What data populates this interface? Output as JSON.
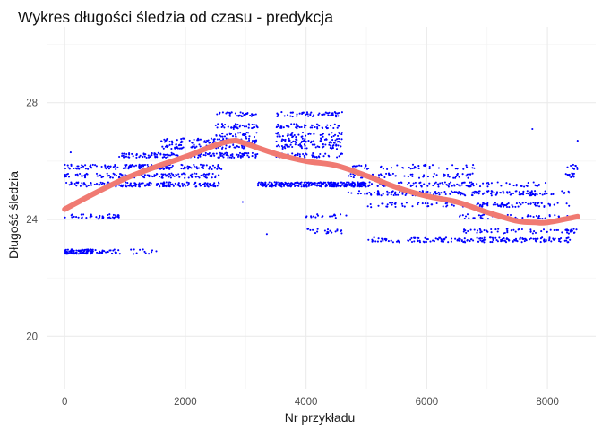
{
  "chart_data": {
    "type": "scatter",
    "title": "Wykres długości śledzia od czasu - predykcja",
    "xlabel": "Nr przykładu",
    "ylabel": "Długość śledzia",
    "xlim": [
      -300,
      8800
    ],
    "ylim": [
      18.2,
      30.6
    ],
    "x_ticks": [
      0,
      2000,
      4000,
      6000,
      8000
    ],
    "y_ticks": [
      20,
      24,
      28
    ],
    "x_tick_labels": [
      "0",
      "2000",
      "4000",
      "6000",
      "8000"
    ],
    "y_tick_labels": [
      "20",
      "24",
      "28"
    ],
    "grid": true,
    "colors": {
      "points": "#0000ff",
      "trend": "#f07a72",
      "grid": "#ebebeb",
      "background": "#ffffff"
    },
    "series": [
      {
        "kind": "points",
        "x_min": 0,
        "x_max": 8500,
        "note_levels": [
          22.9,
          23.3,
          23.6,
          24.1,
          24.5,
          24.9,
          25.2,
          25.5,
          25.8,
          26.2,
          26.5,
          26.7,
          26.9,
          27.2,
          27.6
        ]
      },
      {
        "kind": "smooth",
        "x": [
          0,
          500,
          1000,
          1500,
          2000,
          2500,
          2800,
          3000,
          3500,
          4000,
          4500,
          5000,
          5500,
          6000,
          6500,
          7000,
          7500,
          7800,
          8000,
          8500
        ],
        "y": [
          24.35,
          24.9,
          25.4,
          25.8,
          26.15,
          26.55,
          26.7,
          26.6,
          26.25,
          26.0,
          25.85,
          25.5,
          25.1,
          24.8,
          24.6,
          24.25,
          23.95,
          23.9,
          23.9,
          24.1
        ]
      }
    ]
  }
}
